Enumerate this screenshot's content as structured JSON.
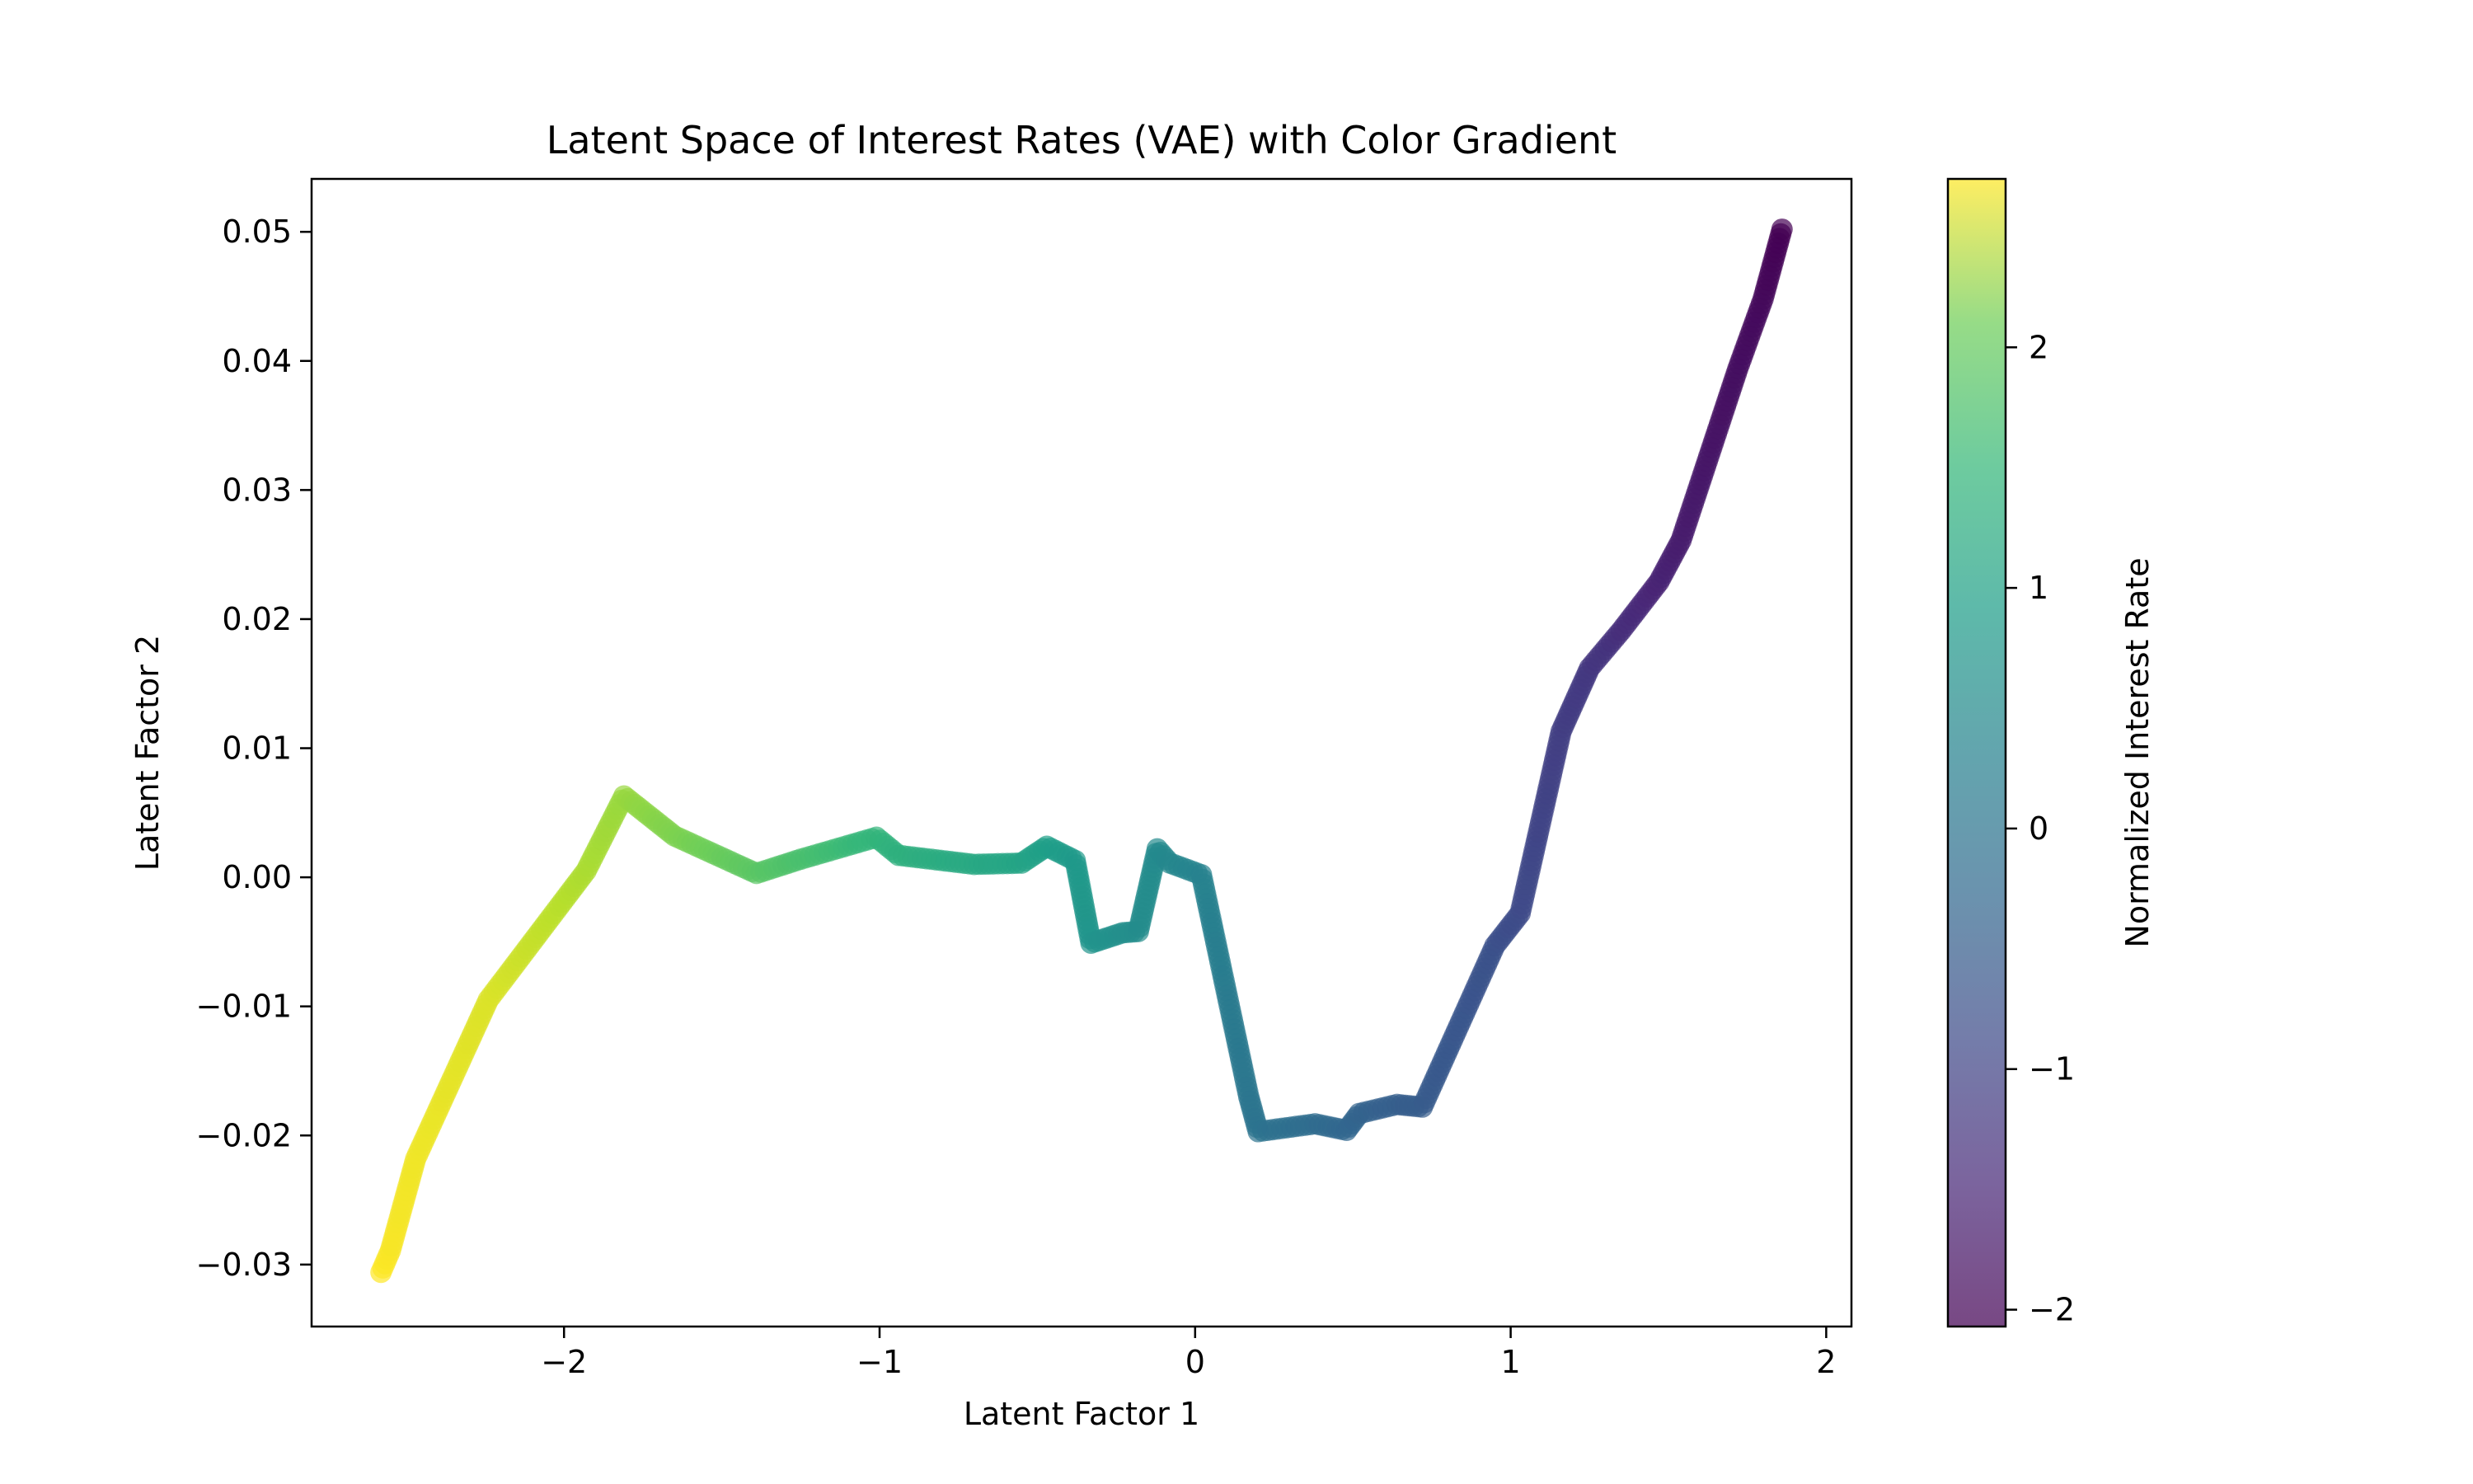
{
  "chart_data": {
    "type": "scatter",
    "title": "Latent Space of Interest Rates (VAE) with Color Gradient",
    "xlabel": "Latent Factor 1",
    "ylabel": "Latent Factor 2",
    "xlim": [
      -2.8,
      2.08
    ],
    "ylim": [
      -0.0348,
      0.0541
    ],
    "x_ticks": [
      -2,
      -1,
      0,
      1,
      2
    ],
    "x_tick_labels": [
      "−2",
      "−1",
      "0",
      "1",
      "2"
    ],
    "y_ticks": [
      -0.03,
      -0.02,
      -0.01,
      0.0,
      0.01,
      0.02,
      0.03,
      0.04,
      0.05
    ],
    "y_tick_labels": [
      "−0.03",
      "−0.02",
      "−0.01",
      "0.00",
      "0.01",
      "0.02",
      "0.03",
      "0.04",
      "0.05"
    ],
    "grid": false,
    "colormap": "viridis",
    "marker_alpha": 0.7,
    "colorbar": {
      "label": "Normalized Interest Rate",
      "range": [
        -2.07,
        2.7
      ],
      "ticks": [
        -2,
        -1,
        0,
        1,
        2
      ],
      "tick_labels": [
        "−2",
        "−1",
        "0",
        "1",
        "2"
      ]
    },
    "path_points": [
      {
        "x": -2.58,
        "y": -0.0306,
        "c": 2.7
      },
      {
        "x": -2.55,
        "y": -0.0289,
        "c": 2.66
      },
      {
        "x": -2.47,
        "y": -0.0218,
        "c": 2.6
      },
      {
        "x": -2.24,
        "y": -0.0095,
        "c": 2.45
      },
      {
        "x": -1.93,
        "y": 0.0005,
        "c": 2.1
      },
      {
        "x": -1.81,
        "y": 0.0063,
        "c": 1.95
      },
      {
        "x": -1.65,
        "y": 0.0032,
        "c": 1.75
      },
      {
        "x": -1.39,
        "y": 0.0003,
        "c": 1.45
      },
      {
        "x": -1.25,
        "y": 0.0014,
        "c": 1.3
      },
      {
        "x": -1.01,
        "y": 0.0031,
        "c": 1.05
      },
      {
        "x": -0.94,
        "y": 0.0017,
        "c": 0.95
      },
      {
        "x": -0.7,
        "y": 0.001,
        "c": 0.8
      },
      {
        "x": -0.55,
        "y": 0.0011,
        "c": 0.7
      },
      {
        "x": -0.47,
        "y": 0.0024,
        "c": 0.6
      },
      {
        "x": -0.38,
        "y": 0.0013,
        "c": 0.5
      },
      {
        "x": -0.33,
        "y": -0.0051,
        "c": 0.4
      },
      {
        "x": -0.28,
        "y": -0.0047,
        "c": 0.35
      },
      {
        "x": -0.23,
        "y": -0.0043,
        "c": 0.3
      },
      {
        "x": -0.18,
        "y": -0.0042,
        "c": 0.25
      },
      {
        "x": -0.12,
        "y": 0.0022,
        "c": 0.2
      },
      {
        "x": -0.08,
        "y": 0.0011,
        "c": 0.15
      },
      {
        "x": 0.02,
        "y": 0.0002,
        "c": 0.05
      },
      {
        "x": 0.17,
        "y": -0.017,
        "c": -0.2
      },
      {
        "x": 0.2,
        "y": -0.0197,
        "c": -0.25
      },
      {
        "x": 0.38,
        "y": -0.0191,
        "c": -0.4
      },
      {
        "x": 0.48,
        "y": -0.0196,
        "c": -0.5
      },
      {
        "x": 0.52,
        "y": -0.0183,
        "c": -0.55
      },
      {
        "x": 0.64,
        "y": -0.0176,
        "c": -0.65
      },
      {
        "x": 0.72,
        "y": -0.0178,
        "c": -0.7
      },
      {
        "x": 0.95,
        "y": -0.0053,
        "c": -0.9
      },
      {
        "x": 1.03,
        "y": -0.0028,
        "c": -1.0
      },
      {
        "x": 1.16,
        "y": 0.0113,
        "c": -1.2
      },
      {
        "x": 1.25,
        "y": 0.0162,
        "c": -1.3
      },
      {
        "x": 1.35,
        "y": 0.0191,
        "c": -1.45
      },
      {
        "x": 1.47,
        "y": 0.0229,
        "c": -1.6
      },
      {
        "x": 1.54,
        "y": 0.0261,
        "c": -1.7
      },
      {
        "x": 1.72,
        "y": 0.0394,
        "c": -1.9
      },
      {
        "x": 1.8,
        "y": 0.0448,
        "c": -1.97
      },
      {
        "x": 1.86,
        "y": 0.0502,
        "c": -2.07
      }
    ]
  }
}
